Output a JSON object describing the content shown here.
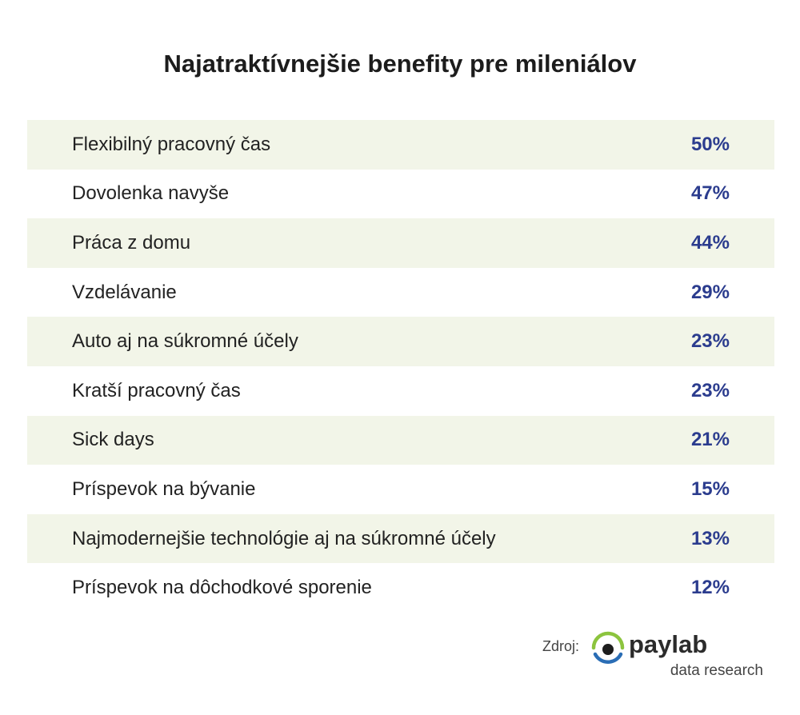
{
  "chart_data": {
    "type": "table",
    "title": "Najatraktívnejšie benefity pre mileniálov",
    "rows": [
      {
        "label": "Flexibilný pracovný čas",
        "value": "50%"
      },
      {
        "label": "Dovolenka navyše",
        "value": "47%"
      },
      {
        "label": "Práca z domu",
        "value": "44%"
      },
      {
        "label": "Vzdelávanie",
        "value": "29%"
      },
      {
        "label": "Auto aj na súkromné účely",
        "value": "23%"
      },
      {
        "label": "Kratší pracovný čas",
        "value": "23%"
      },
      {
        "label": "Sick days",
        "value": "21%"
      },
      {
        "label": "Príspevok na bývanie",
        "value": "15%"
      },
      {
        "label": "Najmodernejšie technológie aj na súkromné účely",
        "value": "13%"
      },
      {
        "label": "Príspevok na dôchodkové sporenie",
        "value": "12%"
      }
    ],
    "values": [
      50,
      47,
      44,
      29,
      23,
      23,
      21,
      15,
      13,
      12
    ]
  },
  "footer": {
    "source_label": "Zdroj:",
    "logo_word": "paylab",
    "logo_sub": "data research",
    "logo_icon": "paylab-eye-icon"
  },
  "colors": {
    "value_text": "#2b3c8e",
    "row_shade": "#f2f5e8",
    "logo_green": "#8cc43e",
    "logo_blue": "#2a6db5"
  }
}
